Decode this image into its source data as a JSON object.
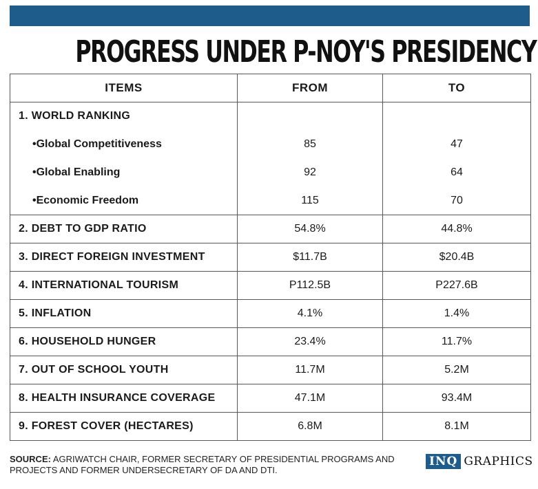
{
  "colors": {
    "top_bar": "#1e5c8c",
    "brand_box": "#1e5c8c"
  },
  "title": "PROGRESS UNDER P-NOY'S PRESIDENCY",
  "table": {
    "headers": [
      "ITEMS",
      "FROM",
      "TO"
    ],
    "rows": [
      {
        "item": "1. WORLD RANKING",
        "from": "",
        "to": "",
        "kind": "group"
      },
      {
        "item": "•Global Competitiveness",
        "from": "85",
        "to": "47",
        "kind": "sub"
      },
      {
        "item": "•Global Enabling",
        "from": "92",
        "to": "64",
        "kind": "sub"
      },
      {
        "item": "•Economic Freedom",
        "from": "115",
        "to": "70",
        "kind": "sub"
      },
      {
        "item": "2. DEBT TO GDP RATIO",
        "from": "54.8%",
        "to": "44.8%",
        "kind": "main"
      },
      {
        "item": "3. DIRECT FOREIGN INVESTMENT",
        "from": "$11.7B",
        "to": "$20.4B",
        "kind": "main"
      },
      {
        "item": "4. INTERNATIONAL TOURISM",
        "from": "P112.5B",
        "to": "P227.6B",
        "kind": "main"
      },
      {
        "item": "5. INFLATION",
        "from": "4.1%",
        "to": "1.4%",
        "kind": "main"
      },
      {
        "item": "6. HOUSEHOLD HUNGER",
        "from": "23.4%",
        "to": "11.7%",
        "kind": "main"
      },
      {
        "item": "7. OUT OF SCHOOL YOUTH",
        "from": "11.7M",
        "to": "5.2M",
        "kind": "main"
      },
      {
        "item": "8. HEALTH INSURANCE COVERAGE",
        "from": "47.1M",
        "to": "93.4M",
        "kind": "main"
      },
      {
        "item": "9. FOREST COVER (HECTARES)",
        "from": "6.8M",
        "to": "8.1M",
        "kind": "main"
      }
    ]
  },
  "footer": {
    "source_label": "SOURCE:",
    "source_text": " AGRIWATCH CHAIR, FORMER SECRETARY OF PRESIDENTIAL PROGRAMS AND PROJECTS AND FORMER UNDERSECRETARY OF DA AND DTI.",
    "brand_box": "INQ",
    "brand_text": "GRAPHICS"
  }
}
